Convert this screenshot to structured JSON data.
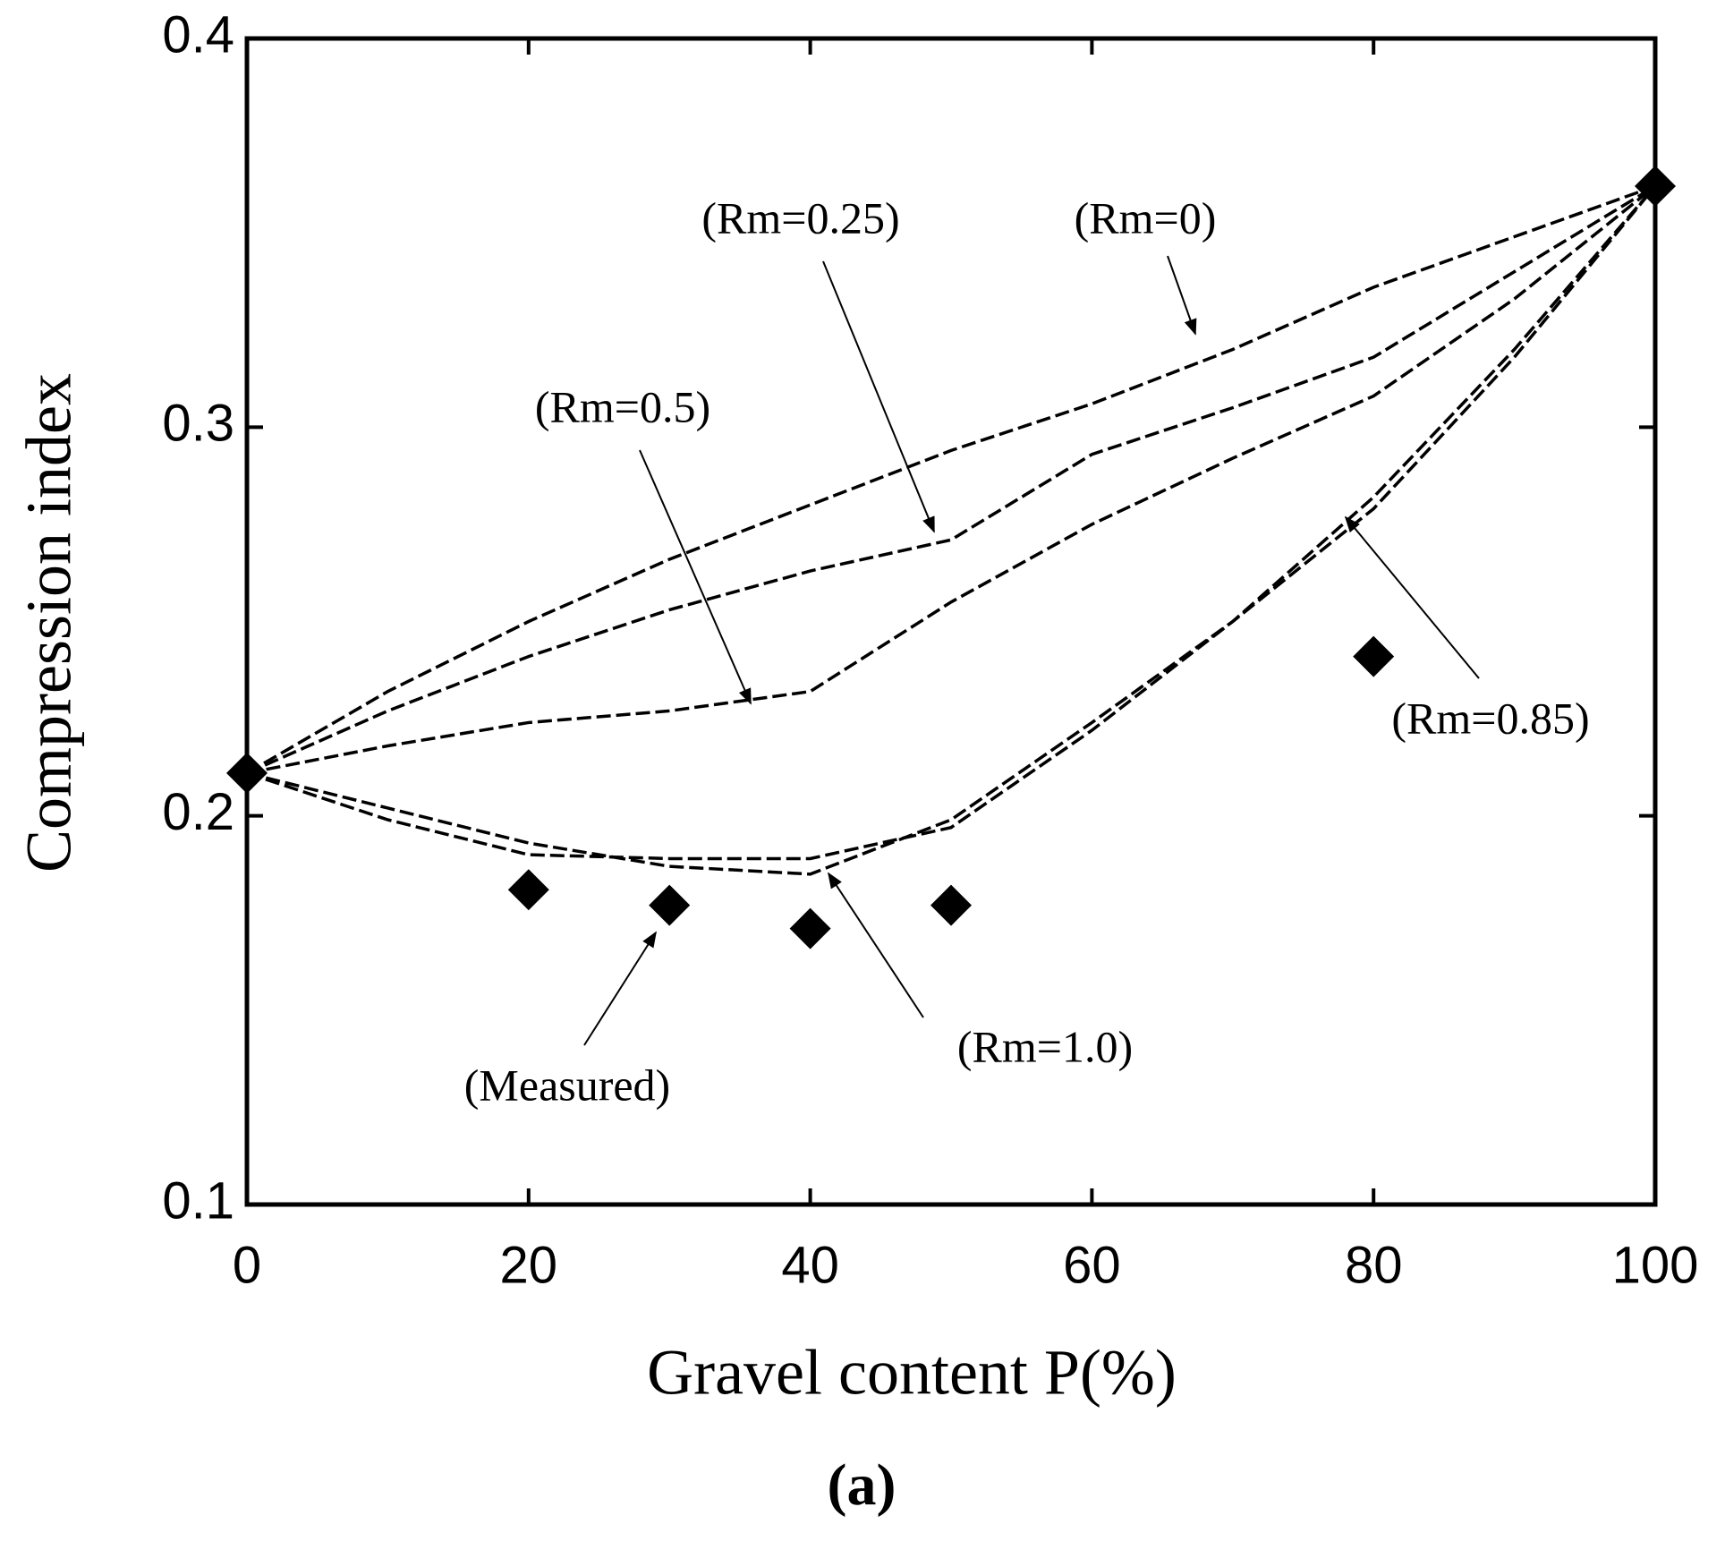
{
  "chart_data": {
    "type": "line",
    "xlabel": "Gravel content P(%)",
    "ylabel": "Compression index",
    "caption": "(a)",
    "xlim": [
      0,
      100
    ],
    "xticks": [
      0,
      20,
      40,
      60,
      80,
      100
    ],
    "ylim": [
      0.1,
      0.4
    ],
    "yticks": [
      0.1,
      0.2,
      0.3,
      0.4
    ],
    "x": [
      0,
      10,
      20,
      30,
      40,
      50,
      60,
      70,
      80,
      90,
      100
    ],
    "series": [
      {
        "name": "(Rm=0)",
        "color": "#000000",
        "values": [
          0.211,
          0.232,
          0.25,
          0.266,
          0.28,
          0.294,
          0.306,
          0.32,
          0.336,
          0.349,
          0.362
        ]
      },
      {
        "name": "(Rm=0.25)",
        "color": "#000000",
        "values": [
          0.211,
          0.227,
          0.241,
          0.253,
          0.263,
          0.271,
          0.293,
          0.305,
          0.318,
          0.34,
          0.362
        ]
      },
      {
        "name": "(Rm=0.5)",
        "color": "#000000",
        "values": [
          0.211,
          0.218,
          0.224,
          0.227,
          0.232,
          0.255,
          0.275,
          0.292,
          0.308,
          0.333,
          0.362
        ]
      },
      {
        "name": "(Rm=0.85)",
        "color": "#000000",
        "values": [
          0.211,
          0.199,
          0.19,
          0.189,
          0.189,
          0.197,
          0.222,
          0.25,
          0.282,
          0.32,
          0.362
        ]
      },
      {
        "name": "(Rm=1.0)",
        "color": "#000000",
        "values": [
          0.211,
          0.202,
          0.193,
          0.187,
          0.185,
          0.199,
          0.224,
          0.25,
          0.279,
          0.318,
          0.362
        ]
      },
      {
        "name": "(Measured)",
        "type": "scatter",
        "color": "#000000",
        "x": [
          0,
          20,
          30,
          40,
          50,
          80,
          100
        ],
        "values": [
          0.211,
          0.181,
          0.177,
          0.171,
          0.177,
          0.241,
          0.362
        ]
      }
    ]
  }
}
